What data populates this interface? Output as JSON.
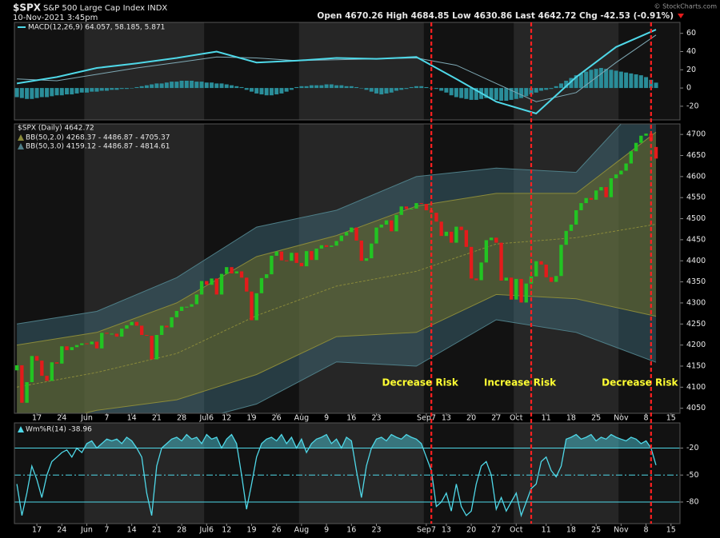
{
  "header": {
    "symbol": "$SPX",
    "name": "S&P 500 Large Cap Index  INDX",
    "date": "10-Nov-2021 3:45pm",
    "quote": "Open 4670.26  High 4684.85  Low 4630.86  Last 4642.72  Chg -42.53 (-0.91%)",
    "credit": "© StockCharts.com"
  },
  "chart_data": [
    {
      "type": "macd",
      "legend": "MACD(12,26,9) 64.057, 58.185, 5.871",
      "x": [
        0,
        8,
        16,
        24,
        32,
        40,
        48,
        56,
        64,
        72,
        80,
        88,
        96,
        104,
        112,
        120,
        128
      ],
      "macd": [
        5,
        12,
        22,
        27,
        33,
        40,
        28,
        30,
        33,
        32,
        34,
        10,
        -15,
        -28,
        12,
        45,
        64.057
      ],
      "signal": [
        10,
        8,
        15,
        22,
        28,
        34,
        33,
        30,
        31,
        32,
        33,
        25,
        5,
        -15,
        -5,
        28,
        58.185
      ],
      "histogram": [
        -10,
        -11,
        -12,
        -12,
        -11,
        -10,
        -10,
        -9,
        -8,
        -8,
        -7,
        -7,
        -6,
        -5,
        -5,
        -4,
        -4,
        -3,
        -3,
        -2,
        -2,
        -1,
        -1,
        0,
        1,
        2,
        3,
        4,
        5,
        5,
        6,
        7,
        7,
        8,
        8,
        8,
        7,
        7,
        6,
        6,
        5,
        5,
        4,
        3,
        2,
        1,
        -2,
        -4,
        -6,
        -7,
        -8,
        -8,
        -7,
        -6,
        -4,
        -2,
        1,
        2,
        2,
        3,
        3,
        3,
        4,
        4,
        3,
        3,
        2,
        2,
        1,
        0,
        -2,
        -4,
        -6,
        -7,
        -6,
        -5,
        -3,
        -2,
        -1,
        1,
        2,
        2,
        1,
        0,
        -1,
        -3,
        -5,
        -8,
        -10,
        -11,
        -12,
        -13,
        -13,
        -12,
        -11,
        -12,
        -13,
        -14,
        -14,
        -13,
        -12,
        -11,
        -9,
        -7,
        -5,
        -3,
        -2,
        -1,
        2,
        5,
        8,
        11,
        14,
        16,
        18,
        20,
        21,
        22,
        21,
        20,
        19,
        18,
        17,
        16,
        15,
        14,
        12,
        9,
        5.871
      ],
      "colors": {
        "macd": "#4fd8e8",
        "signal": "#7fa9b5",
        "histogram": "#2a8d99"
      },
      "ylim": [
        -35,
        72
      ],
      "yticks": [
        -20,
        0,
        20,
        40,
        60
      ]
    },
    {
      "type": "candlestick",
      "legend": "$SPX (Daily) 4642.72",
      "bb2_legend": "BB(50,2.0) 4268.37 - 4486.87 - 4705.37",
      "bb3_legend": "BB(50,3.0) 4159.12 - 4486.87 - 4814.61",
      "open": [
        4140,
        4152,
        4063,
        4112,
        4174,
        4163,
        4127,
        4115,
        4159,
        4156,
        4197,
        4188,
        4195,
        4200,
        4204,
        4202,
        4208,
        4192,
        4229,
        4227,
        4227,
        4220,
        4239,
        4247,
        4255,
        4246,
        4224,
        4222,
        4166,
        4224,
        4246,
        4242,
        4266,
        4281,
        4291,
        4291,
        4297,
        4320,
        4352,
        4343,
        4358,
        4320,
        4369,
        4385,
        4370,
        4375,
        4360,
        4327,
        4259,
        4323,
        4359,
        4368,
        4412,
        4422,
        4401,
        4400,
        4419,
        4395,
        4387,
        4423,
        4402,
        4429,
        4437,
        4433,
        4436,
        4447,
        4460,
        4468,
        4479,
        4448,
        4400,
        4406,
        4441,
        4479,
        4486,
        4496,
        4470,
        4509,
        4529,
        4523,
        4524,
        4537,
        4535,
        4520,
        4514,
        4493,
        4459,
        4469,
        4443,
        4481,
        4473,
        4433,
        4358,
        4354,
        4396,
        4449,
        4455,
        4443,
        4353,
        4360,
        4308,
        4357,
        4301,
        4346,
        4363,
        4399,
        4391,
        4361,
        4350,
        4364,
        4438,
        4471,
        4486,
        4520,
        4537,
        4549,
        4545,
        4567,
        4575,
        4551,
        4596,
        4605,
        4614,
        4631,
        4660,
        4680,
        4697,
        4702,
        4670.26
      ],
      "close": [
        4152,
        4063,
        4112,
        4174,
        4163,
        4127,
        4115,
        4159,
        4156,
        4197,
        4188,
        4195,
        4200,
        4204,
        4202,
        4208,
        4192,
        4229,
        4227,
        4227,
        4220,
        4239,
        4247,
        4255,
        4246,
        4224,
        4222,
        4166,
        4224,
        4246,
        4242,
        4266,
        4281,
        4291,
        4291,
        4297,
        4320,
        4352,
        4343,
        4358,
        4320,
        4369,
        4385,
        4370,
        4375,
        4360,
        4327,
        4259,
        4323,
        4359,
        4368,
        4412,
        4422,
        4401,
        4400,
        4419,
        4395,
        4387,
        4423,
        4402,
        4429,
        4437,
        4433,
        4436,
        4447,
        4460,
        4468,
        4479,
        4448,
        4400,
        4406,
        4441,
        4479,
        4486,
        4496,
        4470,
        4509,
        4529,
        4523,
        4524,
        4537,
        4535,
        4520,
        4514,
        4493,
        4459,
        4469,
        4443,
        4481,
        4473,
        4433,
        4358,
        4354,
        4396,
        4449,
        4455,
        4443,
        4353,
        4360,
        4308,
        4357,
        4301,
        4346,
        4363,
        4399,
        4391,
        4361,
        4350,
        4364,
        4438,
        4471,
        4486,
        4520,
        4537,
        4549,
        4545,
        4567,
        4575,
        4551,
        4596,
        4605,
        4614,
        4631,
        4660,
        4680,
        4697,
        4702,
        4685,
        4642.72
      ],
      "up_color": "#22c422",
      "down_color": "#e41b1b",
      "bands": {
        "x": [
          0,
          16,
          32,
          48,
          64,
          80,
          96,
          112,
          128
        ],
        "upper3": [
          4250,
          4280,
          4360,
          4480,
          4520,
          4600,
          4620,
          4610,
          4814.61
        ],
        "upper2": [
          4200,
          4230,
          4300,
          4410,
          4460,
          4530,
          4560,
          4560,
          4705.37
        ],
        "middle": [
          4100,
          4135,
          4180,
          4270,
          4340,
          4375,
          4440,
          4455,
          4486.87
        ],
        "lower2": [
          4000,
          4045,
          4070,
          4130,
          4220,
          4230,
          4320,
          4310,
          4268.37
        ],
        "lower3": [
          3950,
          4000,
          4010,
          4060,
          4160,
          4150,
          4260,
          4230,
          4159.12
        ]
      },
      "annotations": [
        {
          "x": 83,
          "label": "Decrease Risk"
        },
        {
          "x": 103,
          "label": "Increase Risk"
        },
        {
          "x": 127,
          "label": "Decrease Risk"
        }
      ],
      "xlim": [
        -0.5,
        132.8
      ],
      "xticks": [
        {
          "value": 4,
          "label": "17"
        },
        {
          "value": 9,
          "label": "24"
        },
        {
          "value": 14,
          "label": "Jun"
        },
        {
          "value": 18,
          "label": "7"
        },
        {
          "value": 23,
          "label": "14"
        },
        {
          "value": 28,
          "label": "21"
        },
        {
          "value": 33,
          "label": "28"
        },
        {
          "value": 38,
          "label": "Jul6"
        },
        {
          "value": 42,
          "label": "12"
        },
        {
          "value": 47,
          "label": "19"
        },
        {
          "value": 52,
          "label": "26"
        },
        {
          "value": 57,
          "label": "Aug"
        },
        {
          "value": 62,
          "label": "9"
        },
        {
          "value": 67,
          "label": "16"
        },
        {
          "value": 72,
          "label": "23"
        },
        {
          "value": 82,
          "label": "Sep7"
        },
        {
          "value": 86,
          "label": "13"
        },
        {
          "value": 91,
          "label": "20"
        },
        {
          "value": 96,
          "label": "27"
        },
        {
          "value": 100,
          "label": "Oct"
        },
        {
          "value": 106,
          "label": "11"
        },
        {
          "value": 111,
          "label": "18"
        },
        {
          "value": 116,
          "label": "25"
        },
        {
          "value": 121,
          "label": "Nov"
        },
        {
          "value": 126,
          "label": "8"
        },
        {
          "value": 131,
          "label": "15"
        }
      ],
      "ylim": [
        4038,
        4725
      ],
      "yticks": [
        4050,
        4100,
        4150,
        4200,
        4250,
        4300,
        4350,
        4400,
        4450,
        4500,
        4550,
        4600,
        4650,
        4700
      ]
    },
    {
      "type": "williams",
      "legend": "Wm%R(14) -38.96",
      "color": "#4fd8e8",
      "values": [
        -60,
        -95,
        -70,
        -40,
        -55,
        -75,
        -50,
        -35,
        -30,
        -25,
        -22,
        -30,
        -20,
        -25,
        -15,
        -12,
        -20,
        -15,
        -10,
        -12,
        -10,
        -15,
        -8,
        -12,
        -20,
        -30,
        -70,
        -95,
        -40,
        -20,
        -15,
        -10,
        -8,
        -12,
        -5,
        -10,
        -8,
        -15,
        -5,
        -10,
        -8,
        -20,
        -10,
        -5,
        -15,
        -50,
        -88,
        -60,
        -30,
        -15,
        -10,
        -8,
        -12,
        -5,
        -15,
        -8,
        -20,
        -10,
        -25,
        -15,
        -10,
        -8,
        -5,
        -15,
        -10,
        -20,
        -8,
        -12,
        -45,
        -75,
        -40,
        -20,
        -10,
        -8,
        -12,
        -5,
        -8,
        -10,
        -5,
        -8,
        -10,
        -15,
        -30,
        -45,
        -85,
        -80,
        -70,
        -90,
        -60,
        -85,
        -95,
        -90,
        -60,
        -40,
        -35,
        -50,
        -88,
        -75,
        -90,
        -80,
        -70,
        -95,
        -80,
        -65,
        -60,
        -35,
        -30,
        -45,
        -52,
        -40,
        -10,
        -8,
        -5,
        -10,
        -8,
        -5,
        -12,
        -8,
        -10,
        -5,
        -8,
        -10,
        -12,
        -8,
        -10,
        -15,
        -12,
        -20,
        -38.96
      ],
      "ylim": [
        -104,
        8
      ],
      "yticks": [
        -80,
        -50,
        -20
      ],
      "grid": true,
      "grid_styles": [
        "solid",
        "dashdot",
        "solid"
      ]
    }
  ]
}
